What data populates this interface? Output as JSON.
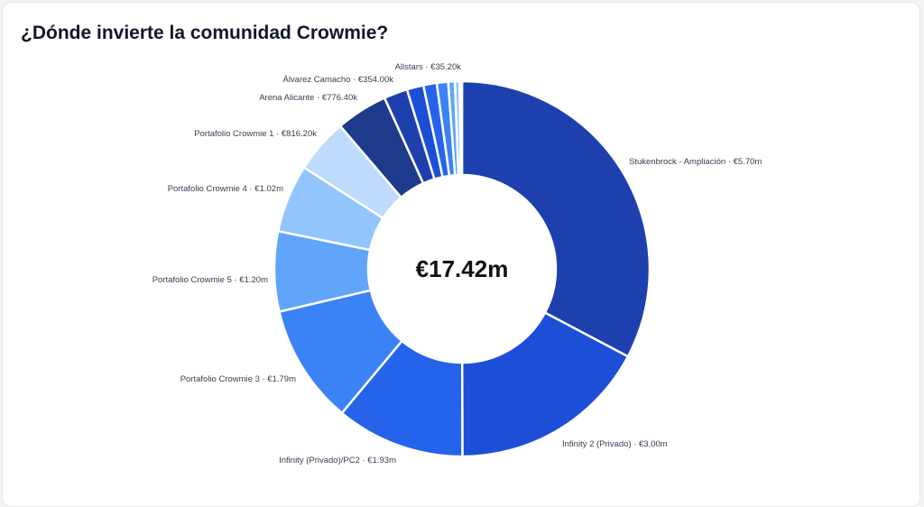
{
  "title": "¿Dónde invierte la comunidad Crowmie?",
  "chart_data": {
    "type": "pie",
    "variant": "donut",
    "total_label": "€17.42m",
    "slices": [
      {
        "name": "Stukenbrock - Ampliación",
        "value": 5.7,
        "value_label": "€5.70m",
        "color": "#1e40af"
      },
      {
        "name": "Infinity 2 (Privado)",
        "value": 3.0,
        "value_label": "€3.00m",
        "color": "#1d4ed8"
      },
      {
        "name": "Infinity (Privado)/PC2",
        "value": 1.93,
        "value_label": "€1.93m",
        "color": "#2563eb"
      },
      {
        "name": "Portafolio Crowmie 3",
        "value": 1.79,
        "value_label": "€1.79m",
        "color": "#3b82f6"
      },
      {
        "name": "Portafolio Crowmie 5",
        "value": 1.2,
        "value_label": "€1.20m",
        "color": "#60a5fa"
      },
      {
        "name": "Portafolio Crowmie 4",
        "value": 1.02,
        "value_label": "€1.02m",
        "color": "#93c5fd"
      },
      {
        "name": "Portafolio Crowmie 1",
        "value": 0.8162,
        "value_label": "€816.20k",
        "color": "#bfdbfe"
      },
      {
        "name": "Arena Alicante",
        "value": 0.7764,
        "value_label": "€776.40k",
        "color": "#1e3a8a"
      },
      {
        "name": "Álvarez Camacho",
        "value": 0.354,
        "value_label": "€354.00k",
        "color": "#1e40af"
      },
      {
        "name": "",
        "value": 0.25,
        "value_label": "",
        "color": "#1d4ed8"
      },
      {
        "name": "",
        "value": 0.2,
        "value_label": "",
        "color": "#2563eb"
      },
      {
        "name": "",
        "value": 0.17,
        "value_label": "",
        "color": "#3b82f6"
      },
      {
        "name": "",
        "value": 0.1,
        "value_label": "",
        "color": "#60a5fa"
      },
      {
        "name": "",
        "value": 0.07,
        "value_label": "",
        "color": "#93c5fd"
      },
      {
        "name": "Allstars",
        "value": 0.0352,
        "value_label": "€35.20k",
        "color": "#bfdbfe"
      }
    ]
  }
}
